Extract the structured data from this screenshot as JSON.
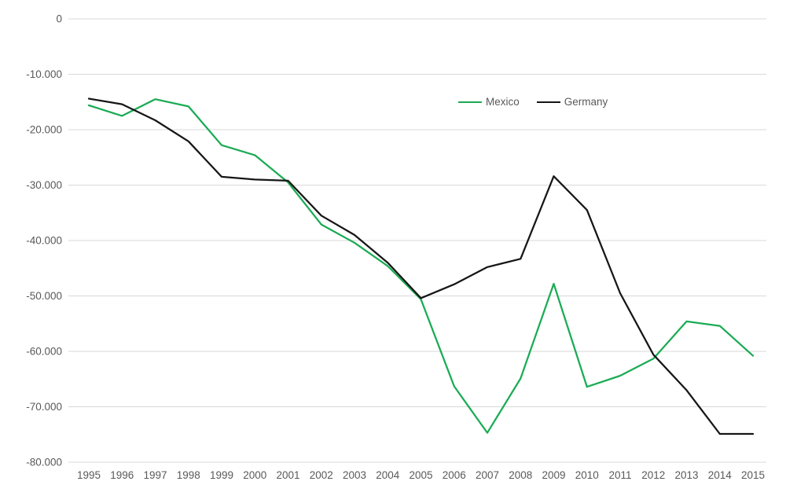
{
  "chart_data": {
    "type": "line",
    "title": "",
    "xlabel": "",
    "ylabel": "",
    "x": [
      1995,
      1996,
      1997,
      1998,
      1999,
      2000,
      2001,
      2002,
      2003,
      2004,
      2005,
      2006,
      2007,
      2008,
      2009,
      2010,
      2011,
      2012,
      2013,
      2014,
      2015
    ],
    "series": [
      {
        "name": "Mexico",
        "color": "#1aab54",
        "values": [
          -15600,
          -17500,
          -14500,
          -15800,
          -22800,
          -24600,
          -29500,
          -37100,
          -40400,
          -44600,
          -50600,
          -66300,
          -74700,
          -64900,
          -47800,
          -66400,
          -64400,
          -61300,
          -54600,
          -55400,
          -60800
        ]
      },
      {
        "name": "Germany",
        "color": "#161616",
        "values": [
          -14400,
          -15400,
          -18300,
          -22100,
          -28500,
          -29000,
          -29200,
          -35500,
          -39000,
          -44000,
          -50400,
          -47900,
          -44800,
          -43300,
          -28400,
          -34500,
          -49500,
          -60600,
          -67000,
          -74900,
          -74900
        ]
      }
    ],
    "ylim": [
      -80000,
      0
    ],
    "y_ticks": [
      0,
      -10000,
      -20000,
      -30000,
      -40000,
      -50000,
      -60000,
      -70000,
      -80000
    ],
    "y_tick_labels": [
      "0",
      "-10.000",
      "-20.000",
      "-30.000",
      "-40.000",
      "-50.000",
      "-60.000",
      "-70.000",
      "-80.000"
    ],
    "grid": true,
    "legend_position": "top-center",
    "colors": {
      "background": "#ffffff",
      "gridline": "#d9d9d9",
      "tick_label": "#595959"
    }
  }
}
